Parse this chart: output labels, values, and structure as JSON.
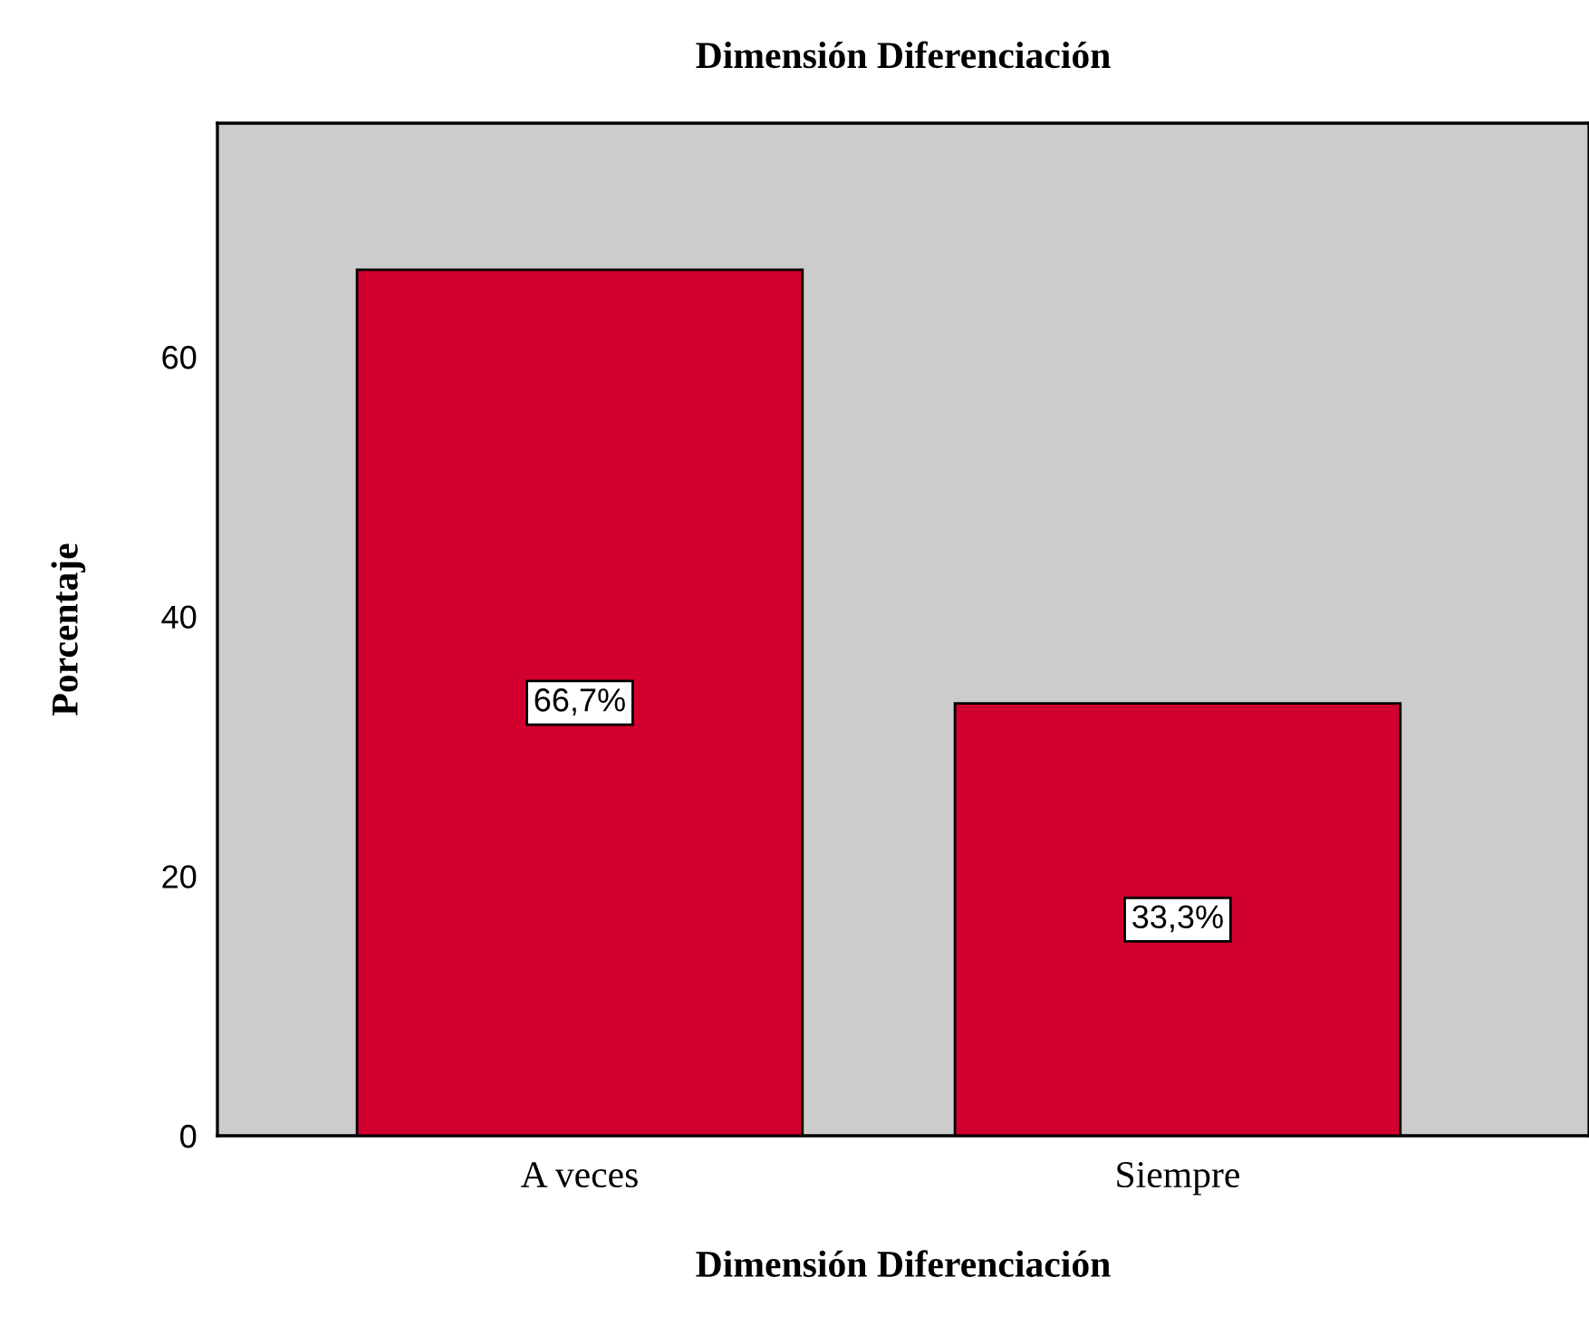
{
  "chart_data": {
    "type": "bar",
    "title": "Dimensión Diferenciación",
    "xlabel": "Dimensión Diferenciación",
    "ylabel": "Porcentaje",
    "categories": [
      "A veces",
      "Siempre"
    ],
    "values": [
      66.7,
      33.3
    ],
    "color": "#d2002e",
    "value_labels": [
      "66,7%",
      "33,3%"
    ],
    "ylim": [
      0,
      78
    ],
    "yticks": [
      0,
      20,
      40,
      60
    ],
    "grid": false,
    "legend": false
  }
}
